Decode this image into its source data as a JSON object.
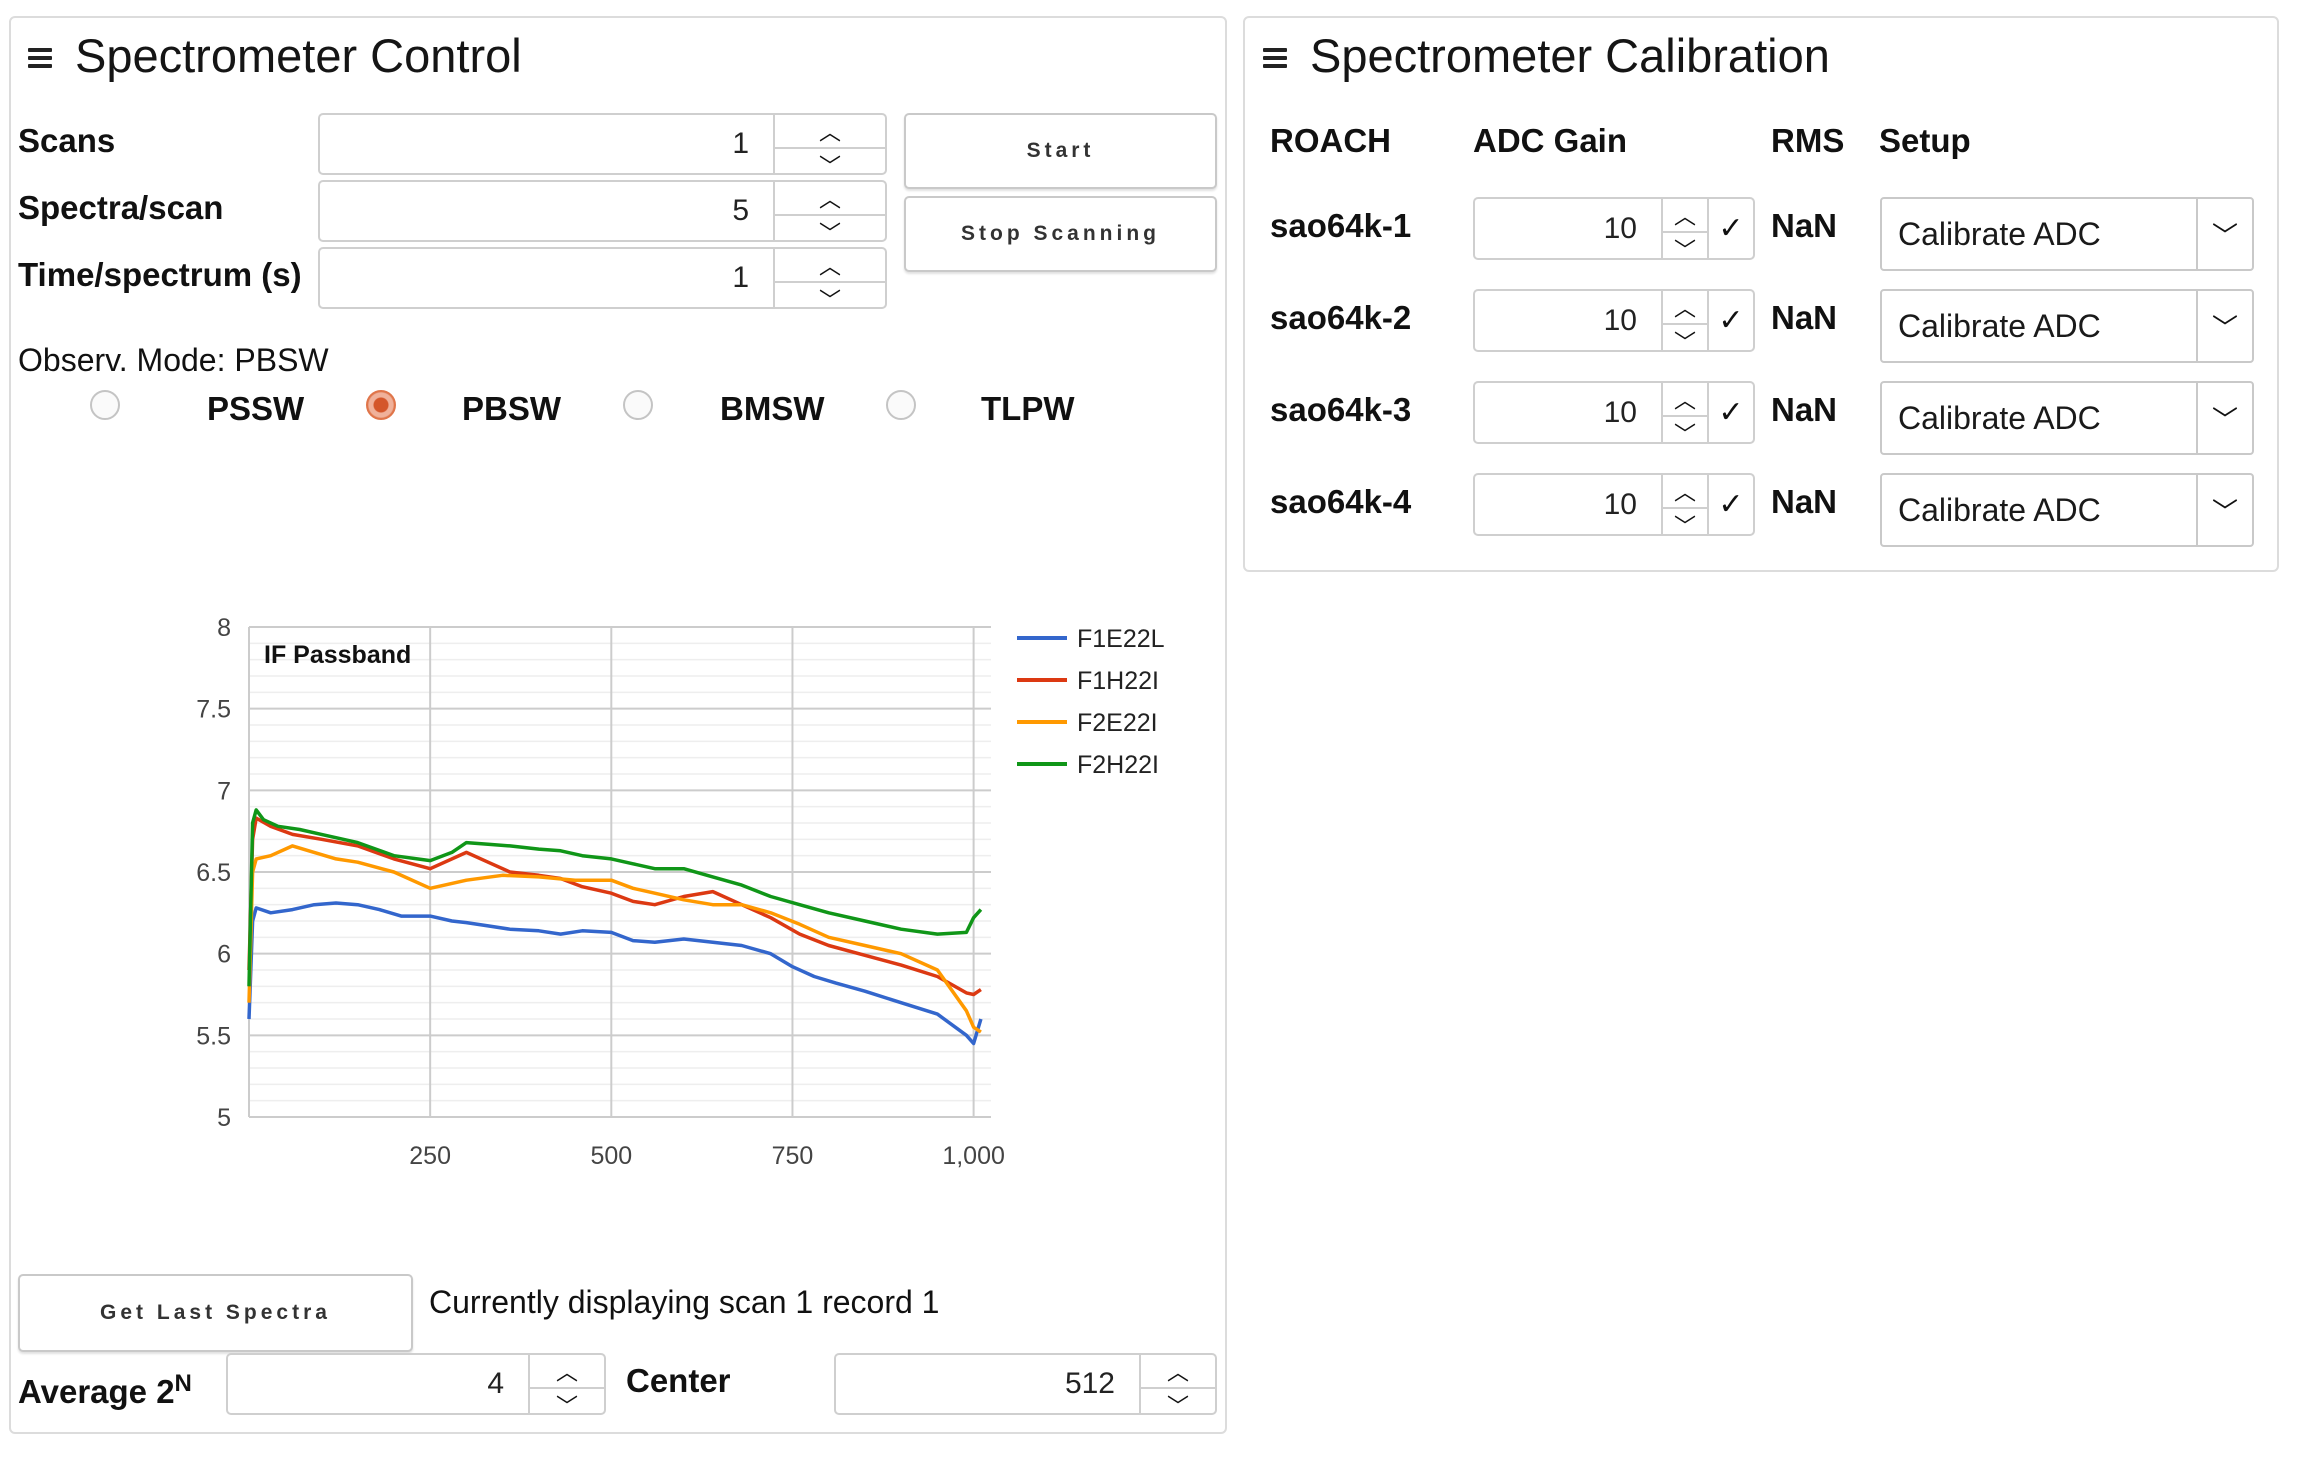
{
  "control": {
    "title": "Spectrometer Control",
    "scans_label": "Scans",
    "scans_value": "1",
    "spectra_label": "Spectra/scan",
    "spectra_value": "5",
    "time_label": "Time/spectrum (s)",
    "time_value": "1",
    "start_label": "Start",
    "stop_label": "Stop Scanning",
    "mode_text": "Observ. Mode: PBSW",
    "modes": [
      "PSSW",
      "PBSW",
      "BMSW",
      "TLPW"
    ],
    "selected_mode": "PBSW",
    "get_last_label": "Get Last Spectra",
    "display_status": "Currently displaying scan 1 record 1",
    "average_label": "Average 2",
    "average_sup": "N",
    "average_value": "4",
    "center_label": "Center",
    "center_value": "512"
  },
  "calibration": {
    "title": "Spectrometer Calibration",
    "headers": {
      "roach": "ROACH",
      "gain": "ADC Gain",
      "rms": "RMS",
      "setup": "Setup"
    },
    "rows": [
      {
        "roach": "sao64k-1",
        "gain": "10",
        "rms": "NaN",
        "setup": "Calibrate ADC"
      },
      {
        "roach": "sao64k-2",
        "gain": "10",
        "rms": "NaN",
        "setup": "Calibrate ADC"
      },
      {
        "roach": "sao64k-3",
        "gain": "10",
        "rms": "NaN",
        "setup": "Calibrate ADC"
      },
      {
        "roach": "sao64k-4",
        "gain": "10",
        "rms": "NaN",
        "setup": "Calibrate ADC"
      }
    ]
  },
  "icons": {
    "menu": "hamburger-icon",
    "up": "chevron-up-icon",
    "down": "chevron-down-icon",
    "check": "check-icon"
  },
  "chart_data": {
    "type": "line",
    "title": "IF Passband",
    "xlim": [
      0,
      1024
    ],
    "ylim": [
      5,
      8
    ],
    "x_ticks": [
      250,
      500,
      750,
      1000
    ],
    "x_tick_labels": [
      "250",
      "500",
      "750",
      "1,000"
    ],
    "y_ticks": [
      5,
      5.5,
      6,
      6.5,
      7,
      7.5,
      8
    ],
    "y_tick_labels": [
      "5",
      "5.5",
      "6",
      "6.5",
      "7",
      "7.5",
      "8"
    ],
    "legend_position": "right",
    "grid": true,
    "series": [
      {
        "name": "F1E22L",
        "color": "#3366cc",
        "x": [
          0,
          5,
          10,
          30,
          60,
          90,
          120,
          150,
          180,
          210,
          250,
          280,
          300,
          330,
          360,
          400,
          430,
          460,
          500,
          530,
          560,
          600,
          640,
          680,
          720,
          750,
          780,
          810,
          850,
          900,
          950,
          990,
          1000,
          1010
        ],
        "y": [
          5.6,
          6.2,
          6.28,
          6.25,
          6.27,
          6.3,
          6.31,
          6.3,
          6.27,
          6.23,
          6.23,
          6.2,
          6.19,
          6.17,
          6.15,
          6.14,
          6.12,
          6.14,
          6.13,
          6.08,
          6.07,
          6.09,
          6.07,
          6.05,
          6.0,
          5.92,
          5.86,
          5.82,
          5.77,
          5.7,
          5.63,
          5.5,
          5.45,
          5.6
        ]
      },
      {
        "name": "F1H22I",
        "color": "#dc3912",
        "x": [
          0,
          5,
          10,
          30,
          60,
          100,
          150,
          200,
          250,
          300,
          330,
          360,
          400,
          430,
          460,
          500,
          530,
          560,
          600,
          640,
          680,
          720,
          760,
          800,
          850,
          900,
          950,
          990,
          1000,
          1010
        ],
        "y": [
          5.9,
          6.7,
          6.83,
          6.78,
          6.73,
          6.7,
          6.66,
          6.58,
          6.52,
          6.62,
          6.56,
          6.5,
          6.48,
          6.46,
          6.41,
          6.37,
          6.32,
          6.3,
          6.35,
          6.38,
          6.3,
          6.22,
          6.12,
          6.05,
          5.99,
          5.93,
          5.86,
          5.76,
          5.75,
          5.78
        ]
      },
      {
        "name": "F2E22I",
        "color": "#ff9900",
        "x": [
          0,
          5,
          10,
          30,
          60,
          90,
          120,
          150,
          200,
          250,
          300,
          350,
          400,
          450,
          500,
          530,
          560,
          600,
          640,
          680,
          720,
          760,
          800,
          850,
          900,
          950,
          990,
          1000,
          1010
        ],
        "y": [
          5.7,
          6.5,
          6.58,
          6.6,
          6.66,
          6.62,
          6.58,
          6.56,
          6.5,
          6.4,
          6.45,
          6.48,
          6.47,
          6.45,
          6.45,
          6.4,
          6.37,
          6.33,
          6.3,
          6.3,
          6.25,
          6.18,
          6.1,
          6.05,
          6.0,
          5.9,
          5.65,
          5.55,
          5.52
        ]
      },
      {
        "name": "F2H22I",
        "color": "#109618",
        "x": [
          0,
          5,
          10,
          20,
          40,
          70,
          100,
          150,
          200,
          250,
          280,
          300,
          330,
          360,
          400,
          430,
          460,
          500,
          530,
          560,
          600,
          640,
          680,
          720,
          760,
          800,
          850,
          900,
          950,
          990,
          1000,
          1010
        ],
        "y": [
          5.8,
          6.8,
          6.88,
          6.82,
          6.78,
          6.76,
          6.73,
          6.68,
          6.6,
          6.57,
          6.62,
          6.68,
          6.67,
          6.66,
          6.64,
          6.63,
          6.6,
          6.58,
          6.55,
          6.52,
          6.52,
          6.47,
          6.42,
          6.35,
          6.3,
          6.25,
          6.2,
          6.15,
          6.12,
          6.13,
          6.22,
          6.27
        ]
      }
    ]
  }
}
